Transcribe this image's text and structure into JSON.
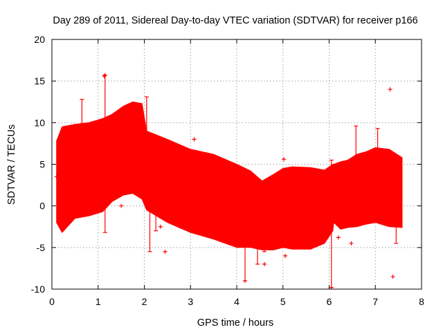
{
  "chart_data": {
    "type": "scatter",
    "title": "Day 289 of 2011, Sidereal Day-to-day VTEC variation (SDTVAR) for receiver p166",
    "xlabel": "GPS time / hours",
    "ylabel": "SDTVAR / TECUs",
    "xlim": [
      0,
      8
    ],
    "ylim": [
      -10,
      20
    ],
    "xticks": [
      "0",
      "1",
      "2",
      "3",
      "4",
      "5",
      "6",
      "7",
      "8"
    ],
    "yticks": [
      "-10",
      "-5",
      "0",
      "5",
      "10",
      "15",
      "20"
    ],
    "grid": true,
    "series_color": "#ff0000",
    "envelope": {
      "name": "SDTVAR error-bar band",
      "x": [
        0.1,
        0.22,
        0.5,
        0.8,
        1.1,
        1.3,
        1.55,
        1.75,
        1.95,
        2.05,
        2.5,
        3.0,
        3.5,
        4.0,
        4.3,
        4.55,
        4.8,
        5.0,
        5.2,
        5.6,
        5.9,
        6.08,
        6.1,
        6.25,
        6.4,
        6.6,
        6.8,
        7.0,
        7.3,
        7.58
      ],
      "upper": [
        7.8,
        9.5,
        9.8,
        10.0,
        10.5,
        11.0,
        12.0,
        12.5,
        12.3,
        9.0,
        8.0,
        6.8,
        6.2,
        5.0,
        4.2,
        3.0,
        3.8,
        4.5,
        4.7,
        4.6,
        4.3,
        5.0,
        5.0,
        5.3,
        5.5,
        6.2,
        6.5,
        7.0,
        6.8,
        5.8
      ],
      "lower": [
        -2.0,
        -3.2,
        -1.5,
        -1.2,
        -0.7,
        0.5,
        1.3,
        1.5,
        0.8,
        -0.5,
        -2.0,
        -3.2,
        -4.0,
        -5.0,
        -5.0,
        -5.3,
        -5.3,
        -5.0,
        -5.2,
        -5.2,
        -4.5,
        -3.0,
        -2.0,
        -2.8,
        -2.6,
        -2.5,
        -2.2,
        -2.0,
        -2.5,
        -2.6
      ]
    },
    "spikes": [
      {
        "x": 0.65,
        "low": 2.0,
        "high": 12.8
      },
      {
        "x": 1.15,
        "low": -3.2,
        "high": 15.7
      },
      {
        "x": 2.05,
        "low": 0.0,
        "high": 13.1
      },
      {
        "x": 2.12,
        "low": -5.5,
        "high": 2.0
      },
      {
        "x": 2.25,
        "low": -3.0,
        "high": 1.0
      },
      {
        "x": 4.18,
        "low": -9.0,
        "high": 2.0
      },
      {
        "x": 4.6,
        "low": -5.5,
        "high": 2.5
      },
      {
        "x": 4.45,
        "low": -7.0,
        "high": 3.0
      },
      {
        "x": 6.05,
        "low": -9.8,
        "high": 5.5
      },
      {
        "x": 6.58,
        "low": 2.0,
        "high": 9.6
      },
      {
        "x": 7.05,
        "low": 3.0,
        "high": 9.3
      },
      {
        "x": 7.45,
        "low": -4.5,
        "high": 5.0
      }
    ],
    "outliers": [
      {
        "x": 0.1,
        "y": 3.5
      },
      {
        "x": 1.15,
        "y": 15.7
      },
      {
        "x": 1.13,
        "y": 15.6
      },
      {
        "x": 2.45,
        "y": -5.5
      },
      {
        "x": 3.08,
        "y": 8.0
      },
      {
        "x": 4.18,
        "y": -9.0
      },
      {
        "x": 4.6,
        "y": -7.0
      },
      {
        "x": 5.02,
        "y": 5.6
      },
      {
        "x": 6.05,
        "y": -9.8
      },
      {
        "x": 6.48,
        "y": -4.5
      },
      {
        "x": 7.32,
        "y": 14.0
      },
      {
        "x": 7.38,
        "y": -8.5
      },
      {
        "x": 2.35,
        "y": -2.5
      },
      {
        "x": 1.5,
        "y": 0.0
      },
      {
        "x": 6.2,
        "y": -3.8
      },
      {
        "x": 5.05,
        "y": -6.0
      }
    ]
  }
}
